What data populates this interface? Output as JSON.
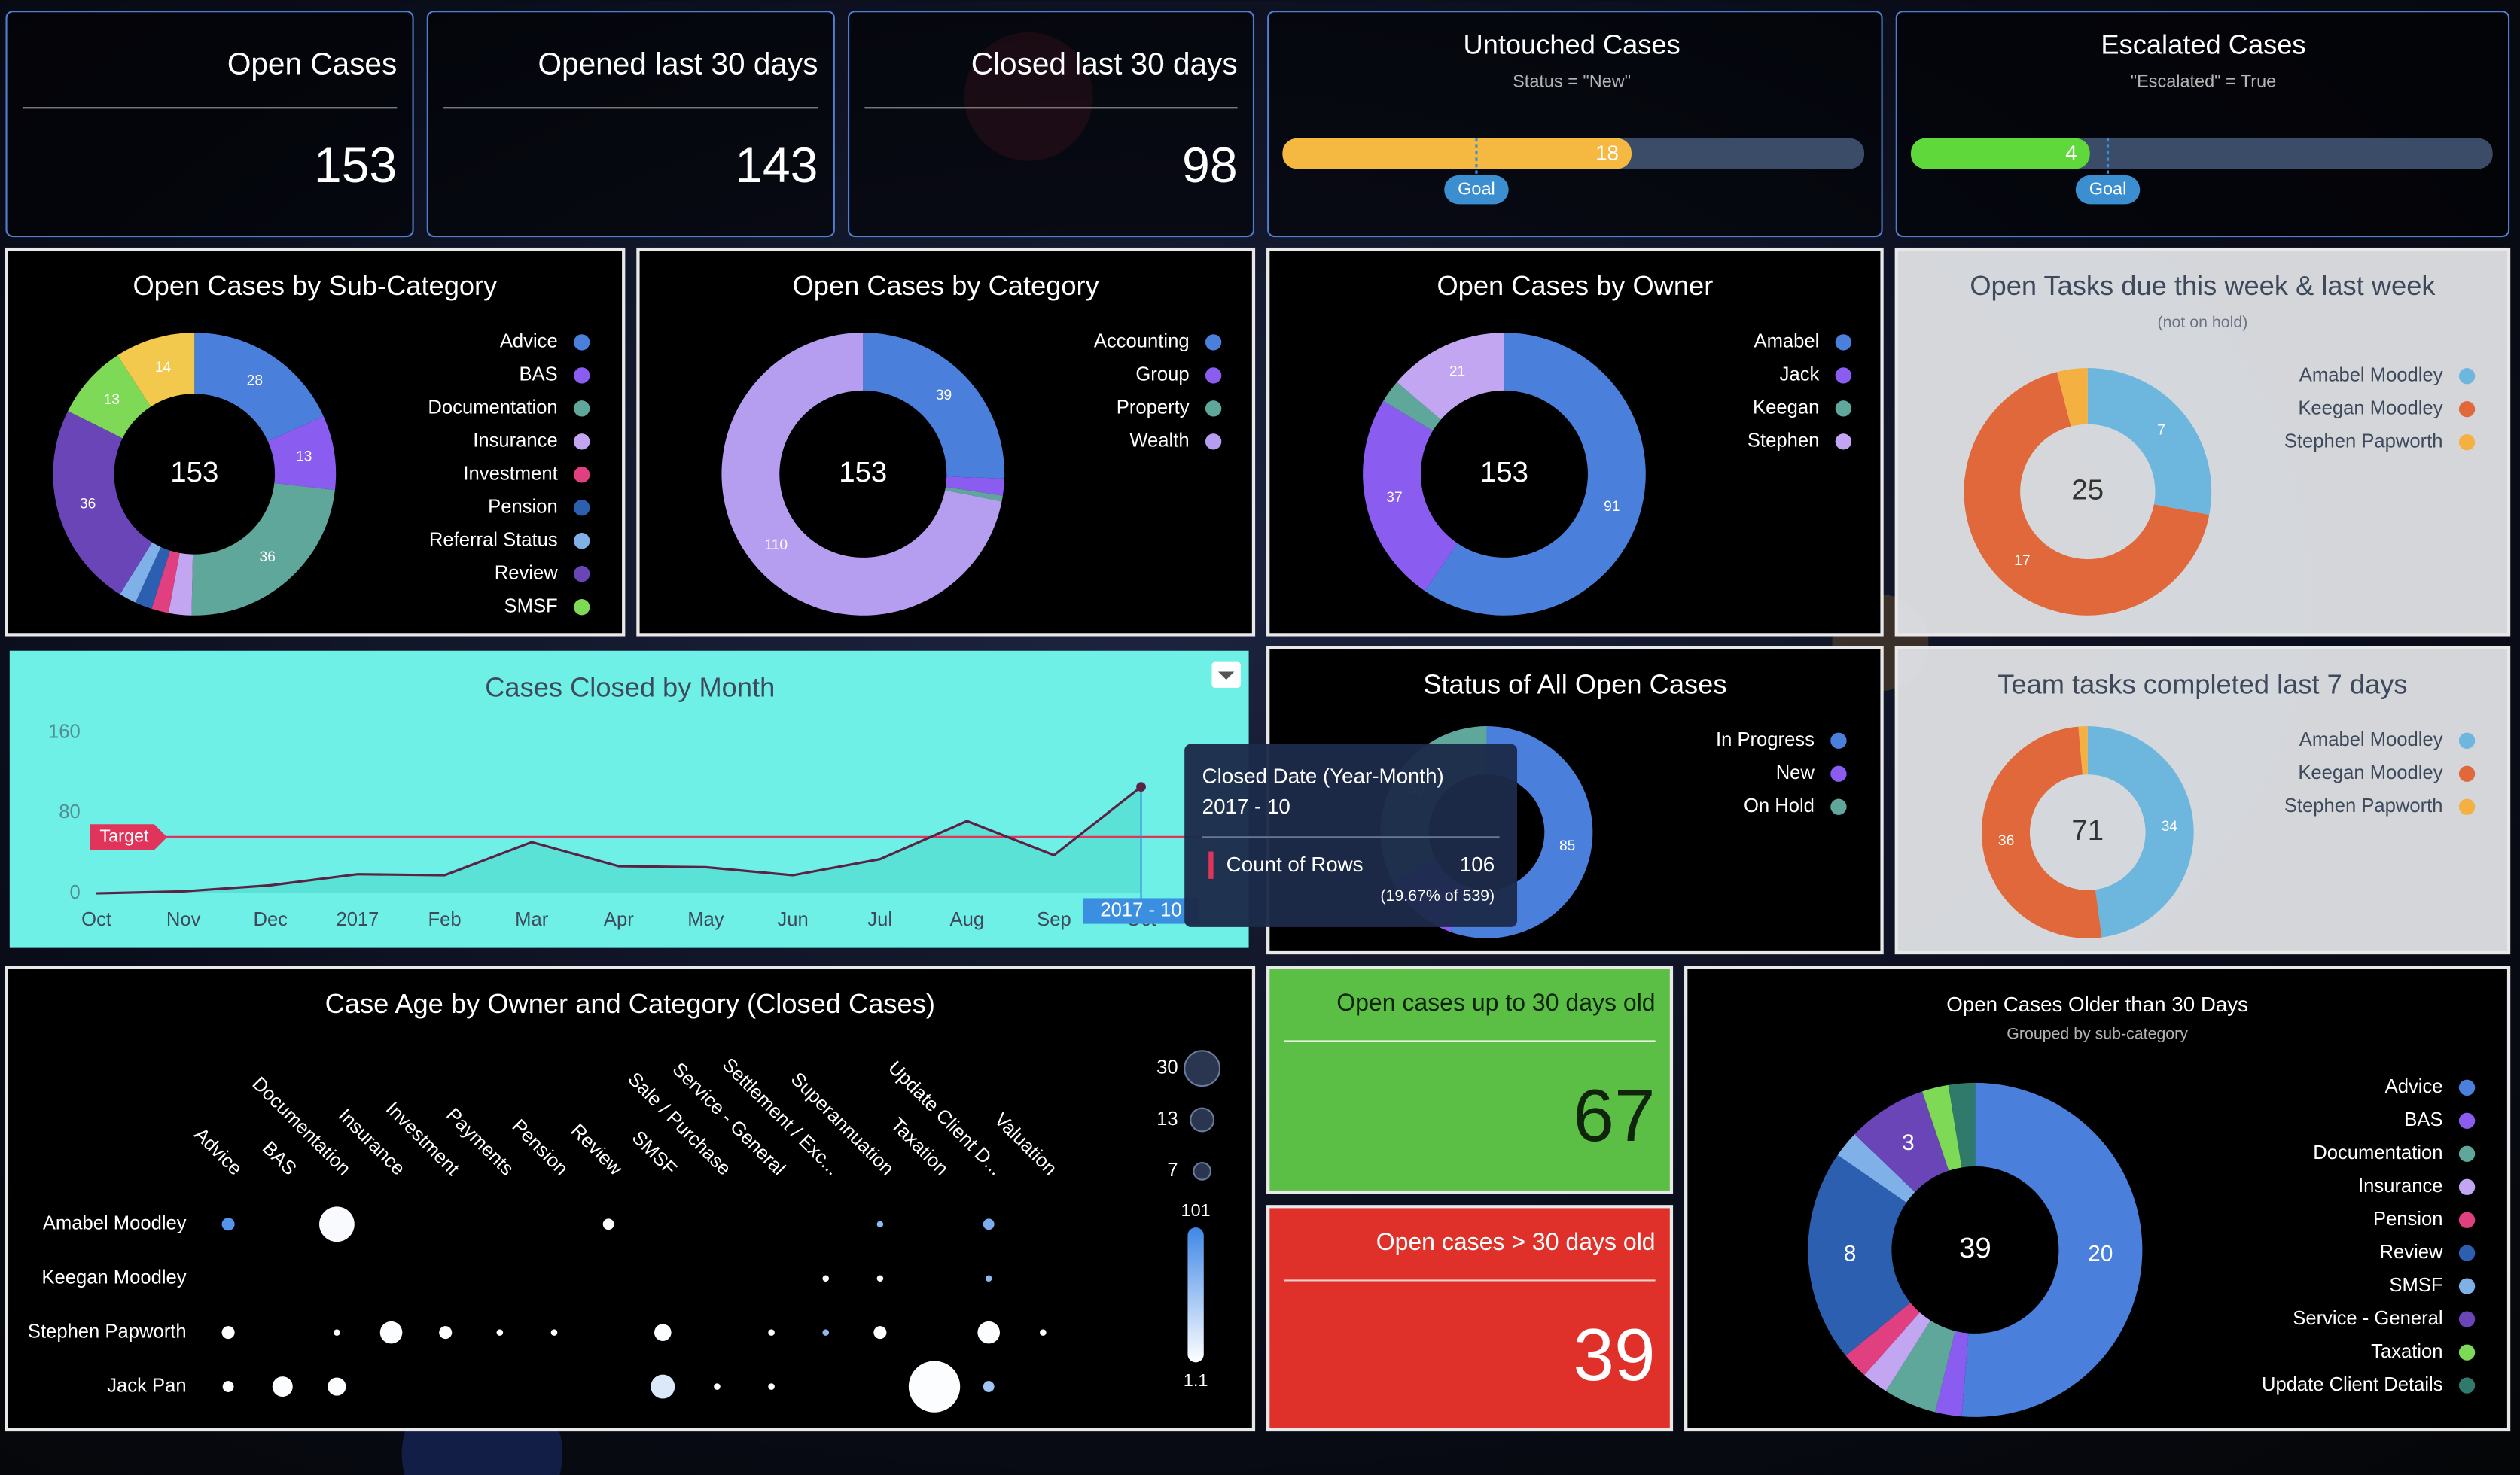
{
  "kpis": [
    {
      "title": "Open Cases",
      "value": 153
    },
    {
      "title": "Opened last 30 days",
      "value": 143
    },
    {
      "title": "Closed last 30 days",
      "value": 98
    }
  ],
  "gauges": [
    {
      "title": "Untouched Cases",
      "subtitle": "Status = \"New\"",
      "value": 18,
      "goal": 10,
      "goal_label": "Goal",
      "range": [
        0,
        30
      ],
      "color": "#f5b942"
    },
    {
      "title": "Escalated Cases",
      "subtitle": "\"Escalated\" = True",
      "value": 4,
      "goal": 4.4,
      "goal_label": "Goal",
      "range": [
        0,
        13
      ],
      "color": "#5fd83b"
    }
  ],
  "donuts": [
    {
      "title": "Open Cases by Sub-Category",
      "total": 153,
      "categories": [
        "Advice",
        "BAS",
        "Documentation",
        "Insurance",
        "Investment",
        "Pension",
        "Referral Status",
        "Review",
        "SMSF",
        null
      ],
      "values": [
        28,
        13,
        36,
        4,
        3,
        3,
        3,
        36,
        13,
        14
      ],
      "colors": [
        "#4a7fdc",
        "#8a5cf0",
        "#5fa79a",
        "#c2a6f2",
        "#e0407f",
        "#2c5fb0",
        "#7fb0e8",
        "#6a45b8",
        "#7ed957",
        "#f2c94c"
      ]
    },
    {
      "title": "Open Cases by Category",
      "total": 153,
      "categories": [
        "Accounting",
        "Group",
        "Property",
        "Wealth"
      ],
      "values": [
        39,
        3,
        1,
        110
      ],
      "colors": [
        "#4a7fdc",
        "#8a5cf0",
        "#5fa79a",
        "#b59ef0"
      ]
    },
    {
      "title": "Open Cases by Owner",
      "total": 153,
      "categories": [
        "Amabel",
        "Jack",
        "Keegan",
        "Stephen"
      ],
      "values": [
        91,
        37,
        4,
        21
      ],
      "colors": [
        "#4a7fdc",
        "#8a5cf0",
        "#5fa79a",
        "#c2a6f2"
      ]
    },
    {
      "title": "Open Tasks due this week & last week",
      "subtitle": "(not on hold)",
      "total": 25,
      "categories": [
        "Amabel Moodley",
        "Keegan Moodley",
        "Stephen Papworth"
      ],
      "values": [
        7,
        17,
        1
      ],
      "colors": [
        "#6db6dd",
        "#e0683a",
        "#f5b042"
      ]
    },
    {
      "title": "Status of All Open Cases",
      "categories": [
        "In Progress",
        "New",
        "On Hold"
      ],
      "values": [
        85,
        18,
        50
      ],
      "colors": [
        "#4a7fdc",
        "#8a5cf0",
        "#5fa79a"
      ]
    },
    {
      "title": "Team tasks completed last 7 days",
      "total": 71,
      "categories": [
        "Amabel Moodley",
        "Keegan Moodley",
        "Stephen Papworth"
      ],
      "values": [
        34,
        36,
        1
      ],
      "colors": [
        "#6db6dd",
        "#e0683a",
        "#f5b042"
      ]
    },
    {
      "title": "Open Cases Older than 30 Days",
      "subtitle": "Grouped by sub-category",
      "total": 39,
      "categories": [
        "Advice",
        "BAS",
        "Documentation",
        "Insurance",
        "Pension",
        "Review",
        "SMSF",
        "Service - General",
        "Taxation",
        "Update Client Details"
      ],
      "values": [
        20,
        1,
        2,
        1,
        1,
        8,
        1,
        3,
        1,
        1
      ],
      "colors": [
        "#4a7fdc",
        "#8a5cf0",
        "#5fa79a",
        "#c2a6f2",
        "#e0407f",
        "#2c5fb0",
        "#7fb0e8",
        "#6a45b8",
        "#7ed957",
        "#2f7a6a"
      ]
    }
  ],
  "line_chart": {
    "title": "Cases Closed by Month",
    "categories": [
      "Oct",
      "Nov",
      "Dec",
      "2017",
      "Feb",
      "Mar",
      "Apr",
      "May",
      "Jun",
      "Jul",
      "Aug",
      "Sep",
      "Oct"
    ],
    "values": [
      0,
      2,
      8,
      19,
      18,
      51,
      27,
      26,
      18,
      34,
      72,
      38,
      106
    ],
    "color": "#5a2346",
    "ylim": [
      0,
      160
    ],
    "yticks": [
      0,
      80,
      160
    ],
    "target": 56,
    "target_label": "Target",
    "target_color": "#e0345a"
  },
  "tooltip": {
    "title": "Closed Date (Year-Month)",
    "category": "2017 - 10",
    "series": "Count of Rows",
    "value": 106,
    "note": "(19.67% of 539)"
  },
  "bubble_chart": {
    "title": "Case Age by Owner and Category (Closed Cases)",
    "columns": [
      "Advice",
      "BAS",
      "Documentation",
      "Insurance",
      "Investment",
      "Payments",
      "Pension",
      "Review",
      "SMSF",
      "Sale / Purchase",
      "Service - General",
      "Settlement / Exc...",
      "Superannuation",
      "Taxation",
      "Update Client D...",
      "Valuation"
    ],
    "rows": [
      "Amabel Moodley",
      "Keegan Moodley",
      "Stephen Papworth",
      "Jack Pan"
    ],
    "points": [
      {
        "column": "Advice",
        "row": "Amabel Moodley",
        "size": 4,
        "color_value": 90
      },
      {
        "column": "Documentation",
        "row": "Amabel Moodley",
        "size": 30,
        "color_value": 5
      },
      {
        "column": "Review",
        "row": "Amabel Moodley",
        "size": 3,
        "color_value": 3
      },
      {
        "column": "Superannuation",
        "row": "Amabel Moodley",
        "size": 1,
        "color_value": 60
      },
      {
        "column": "Update Client D...",
        "row": "Amabel Moodley",
        "size": 3,
        "color_value": 70
      },
      {
        "column": "Settlement / Exc...",
        "row": "Keegan Moodley",
        "size": 1,
        "color_value": 5
      },
      {
        "column": "Superannuation",
        "row": "Keegan Moodley",
        "size": 1,
        "color_value": 5
      },
      {
        "column": "Update Client D...",
        "row": "Keegan Moodley",
        "size": 1,
        "color_value": 60
      },
      {
        "column": "Advice",
        "row": "Stephen Papworth",
        "size": 4,
        "color_value": 3
      },
      {
        "column": "Documentation",
        "row": "Stephen Papworth",
        "size": 1,
        "color_value": 3
      },
      {
        "column": "Insurance",
        "row": "Stephen Papworth",
        "size": 12,
        "color_value": 3
      },
      {
        "column": "Investment",
        "row": "Stephen Papworth",
        "size": 4,
        "color_value": 3
      },
      {
        "column": "Payments",
        "row": "Stephen Papworth",
        "size": 1,
        "color_value": 3
      },
      {
        "column": "Pension",
        "row": "Stephen Papworth",
        "size": 1,
        "color_value": 3
      },
      {
        "column": "SMSF",
        "row": "Stephen Papworth",
        "size": 7,
        "color_value": 3
      },
      {
        "column": "Service - General",
        "row": "Stephen Papworth",
        "size": 1,
        "color_value": 3
      },
      {
        "column": "Settlement / Exc...",
        "row": "Stephen Papworth",
        "size": 1,
        "color_value": 60
      },
      {
        "column": "Superannuation",
        "row": "Stephen Papworth",
        "size": 4,
        "color_value": 3
      },
      {
        "column": "Update Client D...",
        "row": "Stephen Papworth",
        "size": 12,
        "color_value": 3
      },
      {
        "column": "Valuation",
        "row": "Stephen Papworth",
        "size": 1,
        "color_value": 3
      },
      {
        "column": "Advice",
        "row": "Jack Pan",
        "size": 3,
        "color_value": 3
      },
      {
        "column": "BAS",
        "row": "Jack Pan",
        "size": 10,
        "color_value": 3
      },
      {
        "column": "Documentation",
        "row": "Jack Pan",
        "size": 8,
        "color_value": 3
      },
      {
        "column": "SMSF",
        "row": "Jack Pan",
        "size": 14,
        "color_value": 20
      },
      {
        "column": "Sale / Purchase",
        "row": "Jack Pan",
        "size": 1,
        "color_value": 3
      },
      {
        "column": "Service - General",
        "row": "Jack Pan",
        "size": 1,
        "color_value": 3
      },
      {
        "column": "Taxation",
        "row": "Jack Pan",
        "size": 64,
        "color_value": 3
      },
      {
        "column": "Update Client D...",
        "row": "Jack Pan",
        "size": 3,
        "color_value": 50
      }
    ],
    "size_legend": [
      30,
      13,
      7
    ],
    "color_range": [
      1.1,
      101
    ],
    "color_low": "#ffffff",
    "color_high": "#3f88e6"
  },
  "tiles": [
    {
      "title": "Open cases up to 30 days old",
      "value": 67,
      "color": "#5cbf45"
    },
    {
      "title": "Open cases > 30 days old",
      "value": 39,
      "color": "#e0302a"
    }
  ]
}
